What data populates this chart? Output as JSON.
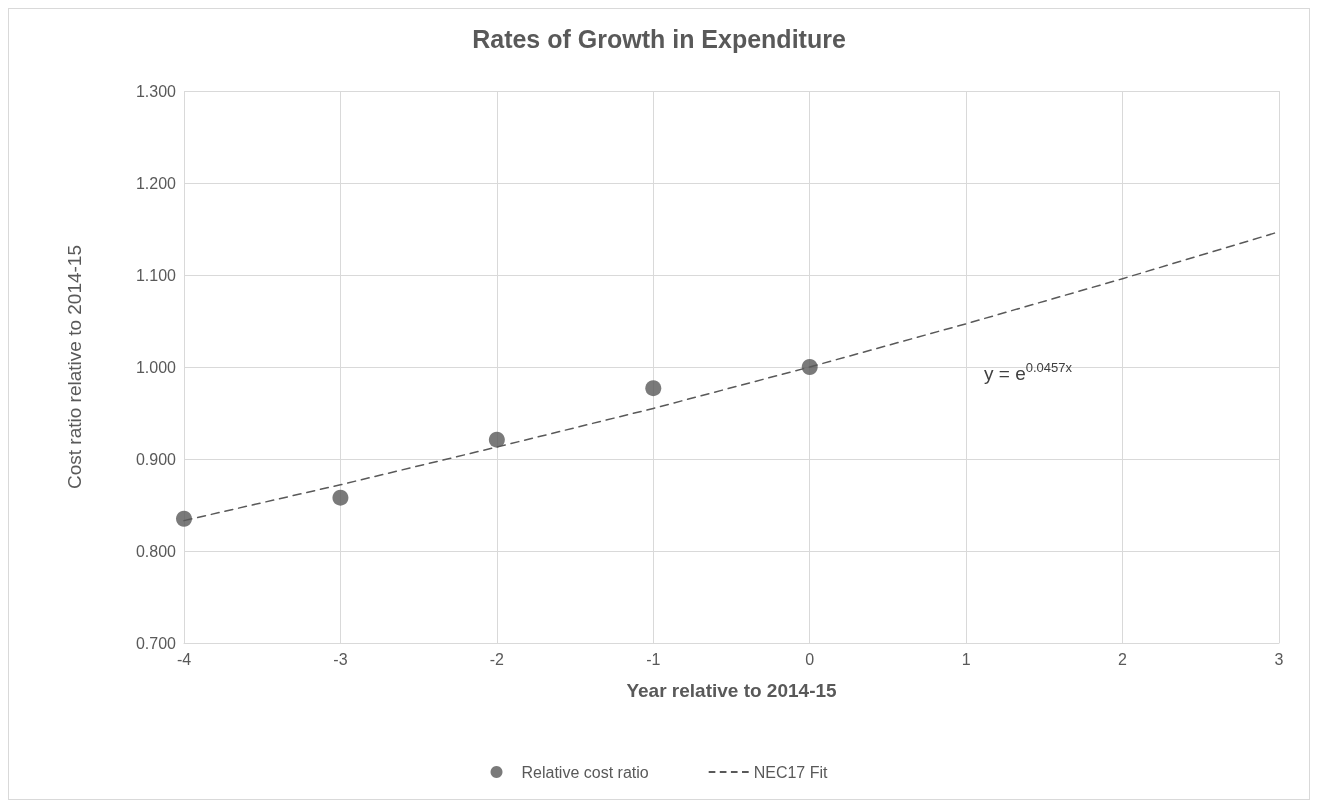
{
  "chart_data": {
    "type": "scatter",
    "title": "Rates of Growth in Expenditure",
    "xlabel": "Year relative to 2014-15",
    "ylabel": "Cost ratio relative to 2014-15",
    "series": [
      {
        "name": "Relative cost ratio",
        "color": "#595959",
        "marker": "circle",
        "x": [
          -4,
          -3,
          -2,
          -1,
          0
        ],
        "values": [
          0.835,
          0.858,
          0.921,
          0.977,
          1.0
        ]
      },
      {
        "name": "NEC17 Fit",
        "type": "line",
        "color": "#595959",
        "marker": "none",
        "line_style": "dashed",
        "x": [
          -4,
          -3,
          -2,
          -1,
          0,
          1,
          2,
          3
        ],
        "values": [
          0.833,
          0.872,
          0.913,
          0.955,
          1.0,
          1.047,
          1.096,
          1.147
        ]
      }
    ],
    "annotations": [
      "y = e$^{0.0457x}$"
    ],
    "xlim": [
      -4,
      3
    ],
    "xticks": [
      -4,
      -3,
      -2,
      -1,
      0,
      1,
      2,
      3
    ],
    "ylim": [
      0.7,
      1.3
    ],
    "yticks": [
      {
        "value": 0.7,
        "label": "0.700"
      },
      {
        "value": 0.8,
        "label": "0.800"
      },
      {
        "value": 0.9,
        "label": "0.900"
      },
      {
        "value": 1.0,
        "label": "1.000"
      },
      {
        "value": 1.1,
        "label": "1.100"
      },
      {
        "value": 1.2,
        "label": "1.200"
      },
      {
        "value": 1.3,
        "label": "1.300"
      }
    ],
    "grid": true,
    "legend": "bottom"
  }
}
